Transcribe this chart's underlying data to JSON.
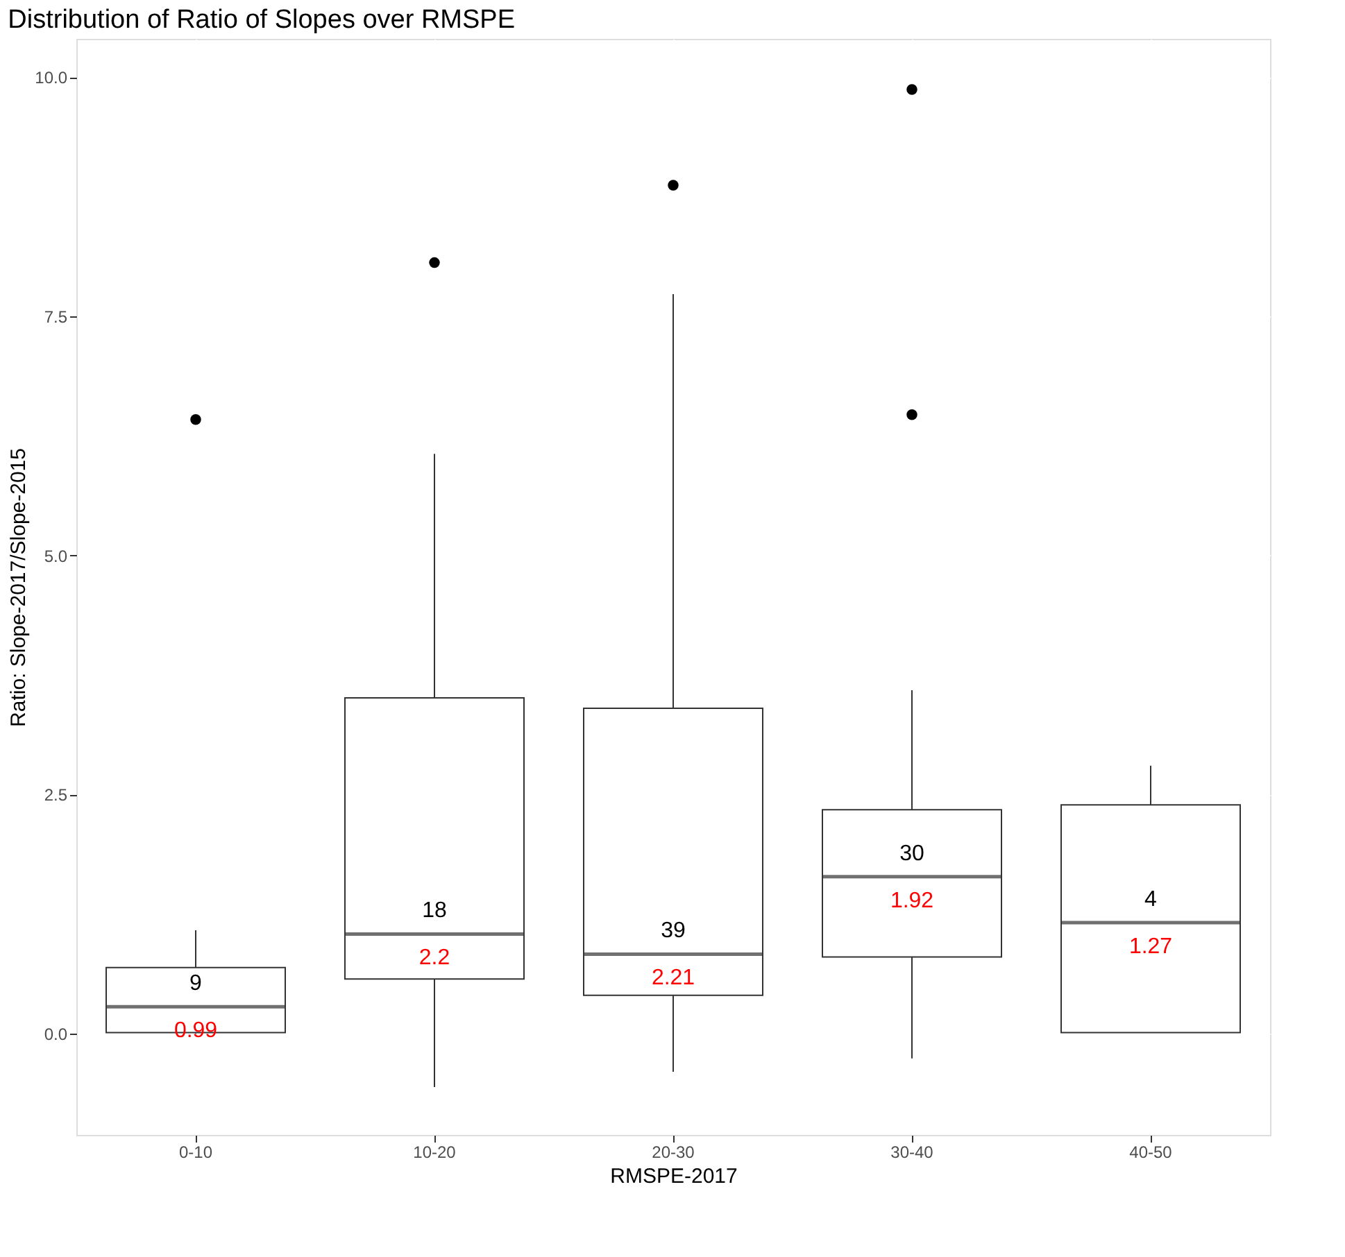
{
  "chart_data": {
    "type": "box",
    "title": "Distribution of Ratio of Slopes over RMSPE",
    "xlabel": "RMSPE-2017",
    "ylabel": "Ratio: Slope-2017/Slope-2015",
    "categories": [
      "0-10",
      "10-20",
      "20-30",
      "30-40",
      "40-50"
    ],
    "boxes": [
      {
        "low": 0.0,
        "q1": 0.01,
        "median": 0.28,
        "q3": 0.69,
        "high": 1.08,
        "outliers": [
          6.42
        ]
      },
      {
        "low": -0.56,
        "q1": 0.57,
        "median": 1.04,
        "q3": 3.51,
        "high": 6.06,
        "outliers": [
          8.06
        ]
      },
      {
        "low": -0.4,
        "q1": 0.4,
        "median": 0.83,
        "q3": 3.4,
        "high": 7.73,
        "outliers": [
          8.87
        ]
      },
      {
        "low": -0.26,
        "q1": 0.8,
        "median": 1.64,
        "q3": 2.34,
        "high": 3.59,
        "outliers": [
          9.87,
          6.47
        ]
      },
      {
        "low": 0.01,
        "q1": 0.01,
        "median": 1.16,
        "q3": 2.39,
        "high": 2.8
      }
    ],
    "annotations": [
      "9",
      "0.99",
      "18",
      "2.2",
      "39",
      "2.21",
      "30",
      "1.92",
      "4",
      "1.27"
    ],
    "ylim": [
      -1.06,
      10.4
    ],
    "yticks": [
      {
        "value": 0,
        "label": "0.0"
      },
      2.5,
      {
        "value": 5,
        "label": "5.0"
      },
      7.5,
      {
        "value": 10,
        "label": "10.0"
      }
    ],
    "grid": true
  }
}
